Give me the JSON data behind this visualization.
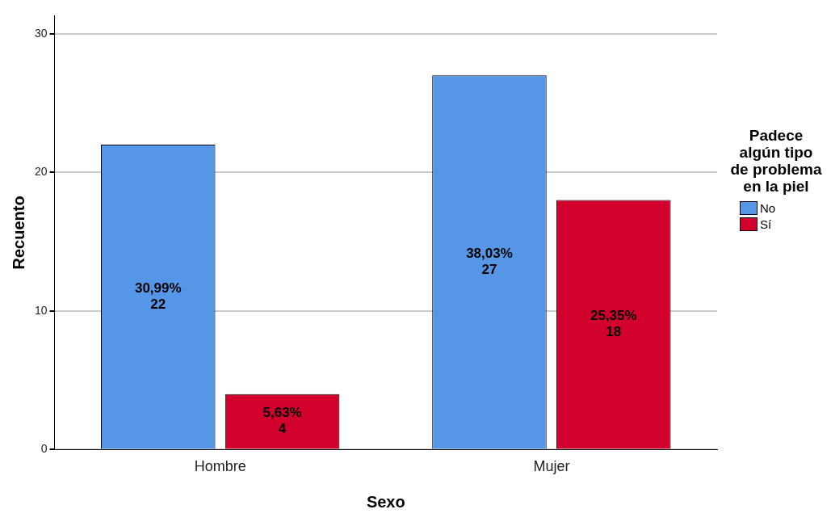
{
  "chart_data": {
    "type": "bar",
    "xlabel": "Sexo",
    "ylabel": "Recuento",
    "legend_title": "Padece algún tipo de problema en la piel",
    "categories": [
      "Hombre",
      "Mujer"
    ],
    "series": [
      {
        "name": "No",
        "color": "#5596e6",
        "values": [
          22,
          27
        ],
        "value_labels": [
          "30,99%\n22",
          "38,03%\n27"
        ]
      },
      {
        "name": "Sí",
        "color": "#d2002d",
        "values": [
          4,
          18
        ],
        "value_labels": [
          "5,63%\n4",
          "25,35%\n18"
        ]
      }
    ],
    "ylim": [
      0,
      31.3
    ],
    "yticks": [
      0,
      10,
      20,
      30
    ],
    "grid": "y",
    "legend": "right"
  }
}
